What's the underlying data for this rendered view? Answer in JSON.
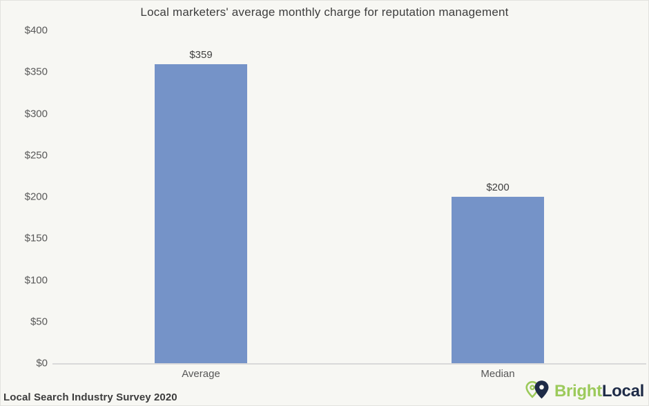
{
  "chart_data": {
    "type": "bar",
    "title": "Local marketers' average monthly charge for reputation management",
    "categories": [
      "Average",
      "Median"
    ],
    "values": [
      359,
      200
    ],
    "data_labels": [
      "$359",
      "$200"
    ],
    "xlabel": "",
    "ylabel": "",
    "ylim": [
      0,
      400
    ],
    "ytick_values": [
      0,
      50,
      100,
      150,
      200,
      250,
      300,
      350,
      400
    ],
    "ytick_labels": [
      "$0",
      "$50",
      "$100",
      "$150",
      "$200",
      "$250",
      "$300",
      "$350",
      "$400"
    ],
    "grid": false,
    "legend_position": "none"
  },
  "footer": {
    "source_label": "Local Search Industry Survey 2020",
    "logo": {
      "icon": "map-pin-icon",
      "text_bright": "Bright",
      "text_local": "Local"
    }
  },
  "colors": {
    "background": "#f7f7f3",
    "bar": "#7593c8",
    "axis_line": "#d9d9d9",
    "title_text": "#3d3d3d",
    "tick_text": "#585858",
    "logo_green": "#9cca5b",
    "logo_navy": "#1e2b47"
  }
}
